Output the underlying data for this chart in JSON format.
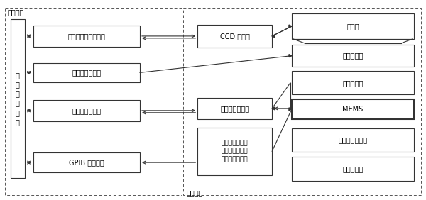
{
  "bg_color": "#ffffff",
  "border_color": "#333333",
  "box_color": "#ffffff",
  "text_color": "#000000",
  "software_label": "软件平台",
  "hardware_label": "硬件平台",
  "ctrl_label": "测\n控\n软\n件\n系\n统",
  "left_boxes": [
    "动态图像采集与重构",
    "图像分析与测量",
    "数据采集与处理",
    "GPIB 仪器控制"
  ],
  "mid_ccd": "CCD 摄像机",
  "mid_sig": "信号调理适配器",
  "mid_wav": "任意波形发生器\n高压运放驱动器\n频闪照明控制器",
  "right_boxes": [
    "显微镜",
    "纳米定位器",
    "显微干涉仪",
    "MEMS",
    "三维微动探针台",
    "振动隔离台"
  ],
  "font_size": 7.5,
  "small_font_size": 7.0
}
